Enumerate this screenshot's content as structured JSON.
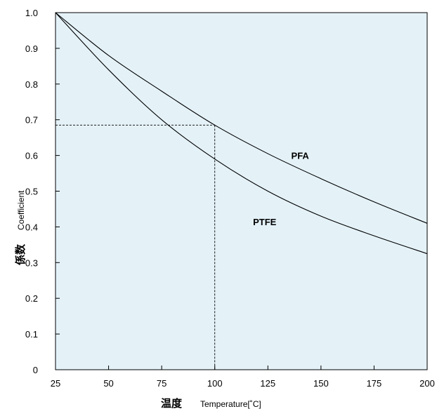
{
  "chart_data": {
    "type": "line",
    "xlabel": {
      "main": "温度",
      "sub": "Temperature[˚C]"
    },
    "ylabel": {
      "main": "係数",
      "sub": "Coefficient"
    },
    "xlim": [
      25,
      200
    ],
    "ylim": [
      0,
      1.0
    ],
    "x_ticks": [
      "25",
      "50",
      "75",
      "100",
      "125",
      "150",
      "175",
      "200"
    ],
    "y_ticks": [
      "0",
      "0.1",
      "0.2",
      "0.3",
      "0.4",
      "0.5",
      "0.6",
      "0.7",
      "0.8",
      "0.9",
      "1.0"
    ],
    "grid": false,
    "plot_background": "#e4f2f8",
    "series": [
      {
        "name": "PFA",
        "color": "#000000",
        "x": [
          25,
          50,
          75,
          100,
          125,
          150,
          175,
          200
        ],
        "y": [
          1.0,
          0.88,
          0.78,
          0.685,
          0.605,
          0.535,
          0.47,
          0.41
        ]
      },
      {
        "name": "PTFE",
        "color": "#000000",
        "x": [
          25,
          50,
          75,
          100,
          125,
          150,
          175,
          200
        ],
        "y": [
          1.0,
          0.84,
          0.7,
          0.59,
          0.5,
          0.43,
          0.375,
          0.325
        ]
      }
    ],
    "reference_lines": {
      "x": 100,
      "y": 0.685,
      "style": "dashed"
    }
  }
}
